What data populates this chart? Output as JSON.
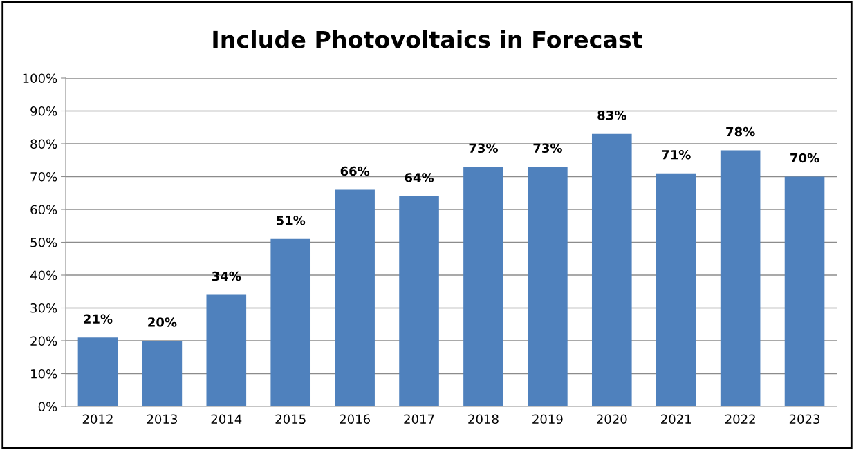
{
  "chart_data": {
    "type": "bar",
    "title": "Include Photovoltaics in Forecast",
    "categories": [
      "2012",
      "2013",
      "2014",
      "2015",
      "2016",
      "2017",
      "2018",
      "2019",
      "2020",
      "2021",
      "2022",
      "2023"
    ],
    "values": [
      21,
      20,
      34,
      51,
      66,
      64,
      73,
      73,
      83,
      71,
      78,
      70
    ],
    "value_labels": [
      "21%",
      "20%",
      "34%",
      "51%",
      "66%",
      "64%",
      "73%",
      "73%",
      "83%",
      "71%",
      "78%",
      "70%"
    ],
    "color": "#4f81bd",
    "ylim": [
      0,
      100
    ],
    "yticks": [
      {
        "value": 0,
        "label": "0%"
      },
      {
        "value": 10,
        "label": "10%"
      },
      {
        "value": 20,
        "label": "20%"
      },
      {
        "value": 30,
        "label": "30%"
      },
      {
        "value": 40,
        "label": "40%"
      },
      {
        "value": 50,
        "label": "50%"
      },
      {
        "value": 60,
        "label": "60%"
      },
      {
        "value": 70,
        "label": "70%"
      },
      {
        "value": 80,
        "label": "80%"
      },
      {
        "value": 90,
        "label": "90%"
      },
      {
        "value": 100,
        "label": "100%"
      }
    ],
    "grid": "y"
  }
}
